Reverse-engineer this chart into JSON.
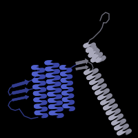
{
  "background_color": "#000000",
  "figure_size": [
    2.0,
    2.0
  ],
  "dpi": 100,
  "blue_color": "#3b47a8",
  "blue_light": "#5060cc",
  "gray_color": "#888898",
  "gray_light": "#aaaabc",
  "gray_dark": "#606070"
}
